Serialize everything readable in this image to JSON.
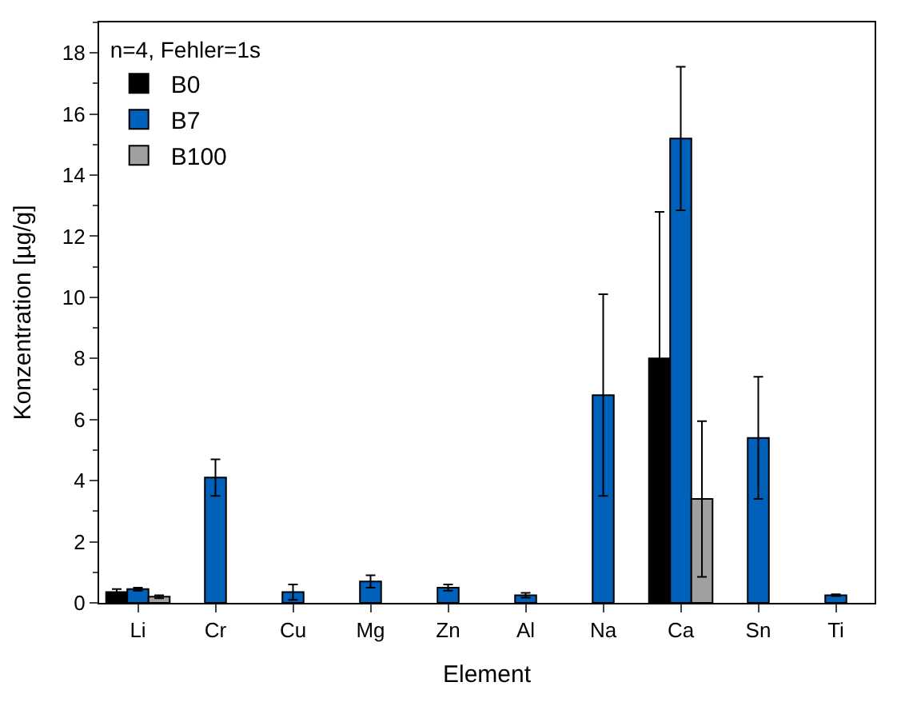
{
  "chart_data": {
    "type": "bar",
    "xlabel": "Element",
    "ylabel": "Konzentration [µg/g]",
    "legend_title": "n=4, Fehler=1s",
    "legend": "top left",
    "categories": [
      "Li",
      "Cr",
      "Cu",
      "Mg",
      "Zn",
      "Al",
      "Na",
      "Ca",
      "Sn",
      "Ti"
    ],
    "series": [
      {
        "name": "B0",
        "color": "#000000",
        "values": [
          0.35,
          null,
          null,
          null,
          null,
          null,
          null,
          8.0,
          null,
          null
        ],
        "errors": [
          0.1,
          null,
          null,
          null,
          null,
          null,
          null,
          4.8,
          null,
          null
        ]
      },
      {
        "name": "B7",
        "color": "#0061bb",
        "values": [
          0.45,
          4.1,
          0.35,
          0.7,
          0.5,
          0.25,
          6.8,
          15.2,
          5.4,
          0.25
        ],
        "errors": [
          0.05,
          0.6,
          0.25,
          0.2,
          0.1,
          0.08,
          3.3,
          2.35,
          2.0,
          0.03
        ]
      },
      {
        "name": "B100",
        "color": "#a0a0a0",
        "values": [
          0.2,
          null,
          null,
          null,
          null,
          null,
          null,
          3.4,
          null,
          null
        ],
        "errors": [
          0.05,
          null,
          null,
          null,
          null,
          null,
          null,
          2.55,
          null,
          null
        ]
      }
    ],
    "ylim": [
      0,
      19
    ],
    "yticks": [
      0,
      2,
      4,
      6,
      8,
      10,
      12,
      14,
      16,
      18
    ]
  }
}
